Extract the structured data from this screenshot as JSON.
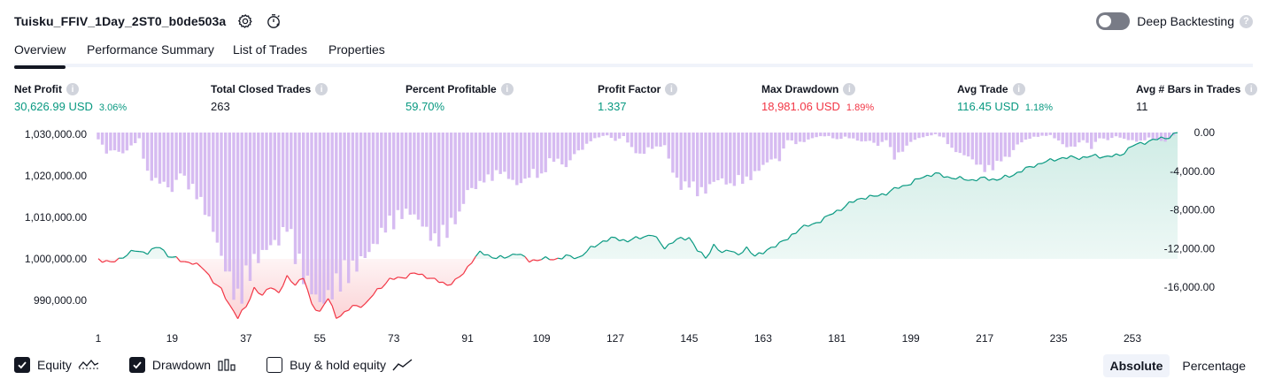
{
  "header": {
    "title": "Tuisku_FFIV_1Day_2ST0_b0de503a",
    "icons": [
      "gear-icon",
      "timer-icon"
    ]
  },
  "deep_backtesting": {
    "label": "Deep Backtesting",
    "enabled": false,
    "help": "?"
  },
  "tabs": [
    {
      "label": "Overview",
      "active": true
    },
    {
      "label": "Performance Summary",
      "active": false
    },
    {
      "label": "List of Trades",
      "active": false
    },
    {
      "label": "Properties",
      "active": false
    }
  ],
  "metrics": [
    {
      "label": "Net Profit",
      "value": "30,626.99 USD",
      "pct": "3.06%",
      "color": "green"
    },
    {
      "label": "Total Closed Trades",
      "value": "263",
      "pct": "",
      "color": "black"
    },
    {
      "label": "Percent Profitable",
      "value": "59.70%",
      "pct": "",
      "color": "green"
    },
    {
      "label": "Profit Factor",
      "value": "1.337",
      "pct": "",
      "color": "green"
    },
    {
      "label": "Max Drawdown",
      "value": "18,981.06 USD",
      "pct": "1.89%",
      "color": "red"
    },
    {
      "label": "Avg Trade",
      "value": "116.45 USD",
      "pct": "1.18%",
      "color": "green"
    },
    {
      "label": "Avg # Bars in Trades",
      "value": "11",
      "pct": "",
      "color": "black"
    }
  ],
  "legend": [
    {
      "label": "Equity",
      "checked": true,
      "icon": "equity-line-icon"
    },
    {
      "label": "Drawdown",
      "checked": true,
      "icon": "drawdown-bars-icon"
    },
    {
      "label": "Buy & hold equity",
      "checked": false,
      "icon": "buy-hold-line-icon"
    }
  ],
  "modes": [
    {
      "label": "Absolute",
      "active": true
    },
    {
      "label": "Percentage",
      "active": false
    }
  ],
  "colors": {
    "equity_up": "#089981",
    "equity_down": "#f23645",
    "drawdown_bar": "#d1b4f0",
    "up_fill": "#cdebe4",
    "down_fill": "#fbd3d6"
  },
  "chart_data": {
    "type": "area",
    "baseline": 1000000,
    "left_axis": {
      "ticks": [
        1030000,
        1020000,
        1010000,
        1000000,
        990000
      ],
      "labels": [
        "1,030,000.00",
        "1,020,000.00",
        "1,010,000.00",
        "1,000,000.00",
        "990,000.00"
      ],
      "range": [
        984500,
        1030000
      ]
    },
    "right_axis": {
      "ticks": [
        0,
        -4000,
        -8000,
        -12000,
        -16000
      ],
      "labels": [
        "0.00",
        "-4,000.00",
        "-8,000.00",
        "-12,000.00",
        "-16,000.00"
      ],
      "range": [
        -18981.06,
        0
      ]
    },
    "x_axis": {
      "ticks": [
        1,
        19,
        37,
        55,
        73,
        91,
        109,
        127,
        145,
        163,
        181,
        199,
        217,
        235,
        253
      ],
      "range": [
        1,
        264
      ]
    },
    "equity_keypoints": [
      [
        1,
        1000000
      ],
      [
        4,
        999000
      ],
      [
        7,
        1000500
      ],
      [
        10,
        1002000
      ],
      [
        13,
        1001500
      ],
      [
        16,
        1003000
      ],
      [
        18,
        1000800
      ],
      [
        21,
        999600
      ],
      [
        24,
        999000
      ],
      [
        27,
        997500
      ],
      [
        29,
        994500
      ],
      [
        31,
        992500
      ],
      [
        33,
        989000
      ],
      [
        35,
        985800
      ],
      [
        37,
        988500
      ],
      [
        39,
        993000
      ],
      [
        41,
        991000
      ],
      [
        43,
        993500
      ],
      [
        45,
        991800
      ],
      [
        47,
        995500
      ],
      [
        49,
        994000
      ],
      [
        51,
        995500
      ],
      [
        53,
        989000
      ],
      [
        55,
        987300
      ],
      [
        57,
        990500
      ],
      [
        59,
        986000
      ],
      [
        61,
        987000
      ],
      [
        63,
        988500
      ],
      [
        66,
        989000
      ],
      [
        69,
        992500
      ],
      [
        72,
        995000
      ],
      [
        75,
        995500
      ],
      [
        78,
        996500
      ],
      [
        81,
        995800
      ],
      [
        84,
        994500
      ],
      [
        86,
        993800
      ],
      [
        88,
        994700
      ],
      [
        90,
        996500
      ],
      [
        92,
        999500
      ],
      [
        94,
        1001500
      ],
      [
        97,
        1000500
      ],
      [
        100,
        1000200
      ],
      [
        103,
        1001500
      ],
      [
        106,
        999500
      ],
      [
        109,
        1000000
      ],
      [
        112,
        999900
      ],
      [
        115,
        1000600
      ],
      [
        118,
        1000300
      ],
      [
        121,
        1002500
      ],
      [
        124,
        1004300
      ],
      [
        127,
        1005000
      ],
      [
        130,
        1004300
      ],
      [
        133,
        1005200
      ],
      [
        136,
        1005800
      ],
      [
        139,
        1002800
      ],
      [
        142,
        1004600
      ],
      [
        145,
        1005200
      ],
      [
        147,
        1002000
      ],
      [
        149,
        1000300
      ],
      [
        151,
        1003300
      ],
      [
        153,
        1001300
      ],
      [
        155,
        1002400
      ],
      [
        157,
        1000800
      ],
      [
        159,
        1002500
      ],
      [
        161,
        1001000
      ],
      [
        163,
        1001300
      ],
      [
        166,
        1003400
      ],
      [
        169,
        1004700
      ],
      [
        172,
        1007500
      ],
      [
        175,
        1008200
      ],
      [
        178,
        1009800
      ],
      [
        181,
        1011500
      ],
      [
        184,
        1013300
      ],
      [
        187,
        1014700
      ],
      [
        190,
        1015000
      ],
      [
        193,
        1015800
      ],
      [
        196,
        1017200
      ],
      [
        199,
        1018200
      ],
      [
        202,
        1019800
      ],
      [
        205,
        1020500
      ],
      [
        208,
        1019700
      ],
      [
        211,
        1019300
      ],
      [
        214,
        1019000
      ],
      [
        217,
        1019400
      ],
      [
        220,
        1019100
      ],
      [
        223,
        1019900
      ],
      [
        226,
        1021200
      ],
      [
        229,
        1022500
      ],
      [
        232,
        1023400
      ],
      [
        235,
        1024200
      ],
      [
        238,
        1024400
      ],
      [
        241,
        1024400
      ],
      [
        244,
        1024800
      ],
      [
        247,
        1024600
      ],
      [
        250,
        1025000
      ],
      [
        253,
        1027200
      ],
      [
        256,
        1028100
      ],
      [
        259,
        1028800
      ],
      [
        262,
        1029400
      ],
      [
        264,
        1030400
      ]
    ],
    "drawdown_keypoints": [
      [
        1,
        -700
      ],
      [
        3,
        -2200
      ],
      [
        5,
        -1900
      ],
      [
        7,
        -2300
      ],
      [
        9,
        -1500
      ],
      [
        11,
        -700
      ],
      [
        13,
        -4700
      ],
      [
        15,
        -5300
      ],
      [
        17,
        -5500
      ],
      [
        19,
        -6400
      ],
      [
        21,
        -4300
      ],
      [
        23,
        -5900
      ],
      [
        25,
        -6900
      ],
      [
        27,
        -8600
      ],
      [
        29,
        -10600
      ],
      [
        31,
        -13600
      ],
      [
        33,
        -16000
      ],
      [
        35,
        -18900
      ],
      [
        37,
        -16500
      ],
      [
        39,
        -14300
      ],
      [
        41,
        -13200
      ],
      [
        43,
        -12200
      ],
      [
        45,
        -11900
      ],
      [
        47,
        -10300
      ],
      [
        49,
        -13600
      ],
      [
        51,
        -15800
      ],
      [
        53,
        -17200
      ],
      [
        55,
        -18600
      ],
      [
        57,
        -18000
      ],
      [
        59,
        -16900
      ],
      [
        61,
        -16000
      ],
      [
        63,
        -15200
      ],
      [
        65,
        -14000
      ],
      [
        67,
        -13000
      ],
      [
        69,
        -11800
      ],
      [
        71,
        -10400
      ],
      [
        73,
        -10000
      ],
      [
        75,
        -9000
      ],
      [
        77,
        -8700
      ],
      [
        79,
        -9500
      ],
      [
        81,
        -10700
      ],
      [
        83,
        -12000
      ],
      [
        85,
        -11600
      ],
      [
        87,
        -10200
      ],
      [
        89,
        -9000
      ],
      [
        91,
        -6300
      ],
      [
        93,
        -6000
      ],
      [
        95,
        -5200
      ],
      [
        97,
        -5000
      ],
      [
        99,
        -4300
      ],
      [
        101,
        -4900
      ],
      [
        103,
        -5700
      ],
      [
        105,
        -5200
      ],
      [
        107,
        -4300
      ],
      [
        109,
        -5100
      ],
      [
        111,
        -3100
      ],
      [
        113,
        -3000
      ],
      [
        115,
        -3800
      ],
      [
        117,
        -2300
      ],
      [
        119,
        -1800
      ],
      [
        121,
        -900
      ],
      [
        123,
        -500
      ],
      [
        125,
        -300
      ],
      [
        127,
        -900
      ],
      [
        129,
        -400
      ],
      [
        131,
        -1700
      ],
      [
        133,
        -2600
      ],
      [
        135,
        -1800
      ],
      [
        137,
        -1600
      ],
      [
        139,
        -1400
      ],
      [
        141,
        -4300
      ],
      [
        143,
        -6000
      ],
      [
        145,
        -5700
      ],
      [
        147,
        -6600
      ],
      [
        149,
        -6400
      ],
      [
        151,
        -5300
      ],
      [
        153,
        -5100
      ],
      [
        155,
        -5900
      ],
      [
        157,
        -5200
      ],
      [
        159,
        -5400
      ],
      [
        161,
        -4500
      ],
      [
        163,
        -3600
      ],
      [
        165,
        -2900
      ],
      [
        167,
        -3000
      ],
      [
        169,
        -800
      ],
      [
        171,
        -1200
      ],
      [
        173,
        -1000
      ],
      [
        175,
        -600
      ],
      [
        177,
        -400
      ],
      [
        179,
        -400
      ],
      [
        181,
        -800
      ],
      [
        183,
        -500
      ],
      [
        185,
        -700
      ],
      [
        187,
        -1000
      ],
      [
        189,
        -900
      ],
      [
        191,
        -1400
      ],
      [
        193,
        -800
      ],
      [
        195,
        -2800
      ],
      [
        197,
        -2000
      ],
      [
        199,
        -1000
      ],
      [
        201,
        -600
      ],
      [
        203,
        -400
      ],
      [
        205,
        -200
      ],
      [
        207,
        -600
      ],
      [
        209,
        -1800
      ],
      [
        211,
        -2300
      ],
      [
        213,
        -2600
      ],
      [
        215,
        -3400
      ],
      [
        217,
        -4100
      ],
      [
        219,
        -3900
      ],
      [
        221,
        -3000
      ],
      [
        223,
        -2600
      ],
      [
        225,
        -1300
      ],
      [
        227,
        -800
      ],
      [
        229,
        -500
      ],
      [
        231,
        -400
      ],
      [
        233,
        -300
      ],
      [
        235,
        -900
      ],
      [
        237,
        -1600
      ],
      [
        239,
        -1500
      ],
      [
        241,
        -800
      ],
      [
        243,
        -1700
      ],
      [
        245,
        -600
      ],
      [
        247,
        -800
      ],
      [
        249,
        -400
      ],
      [
        251,
        -700
      ],
      [
        253,
        -900
      ],
      [
        255,
        -1000
      ],
      [
        257,
        -600
      ],
      [
        259,
        -800
      ],
      [
        261,
        -1000
      ],
      [
        262,
        -600
      ],
      [
        263,
        -300
      ],
      [
        264,
        0
      ]
    ]
  }
}
